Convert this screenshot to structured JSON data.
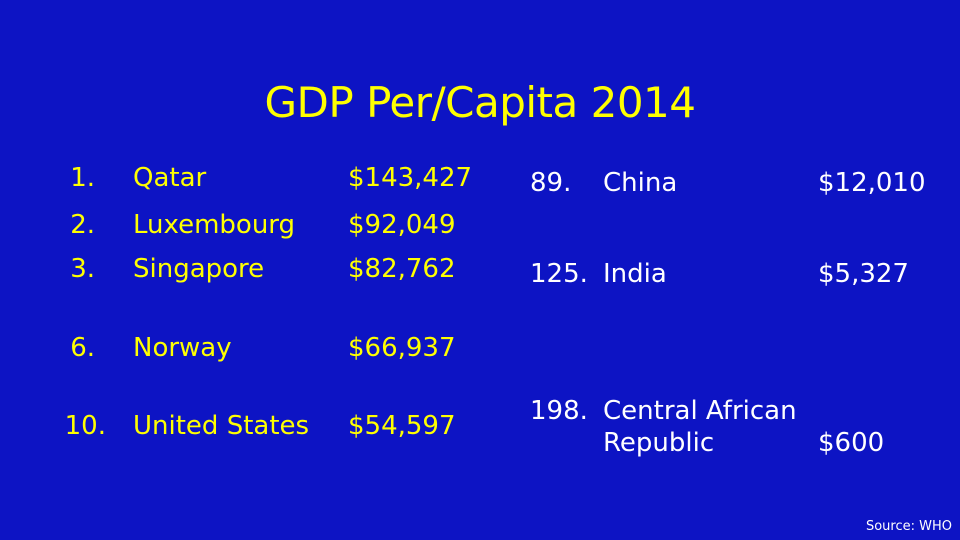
{
  "title": "GDP Per/Capita 2014",
  "colors": {
    "background": "#0d14c4",
    "title": "#ffff00",
    "left_table": "#ffff00",
    "right_table": "#ffffff"
  },
  "left_rows": [
    {
      "rank": "1.",
      "country": "Qatar",
      "gdp": "$143,427"
    },
    {
      "rank": "2.",
      "country": "Luxembourg",
      "gdp": "$92,049"
    },
    {
      "rank": "3.",
      "country": "Singapore",
      "gdp": "$82,762"
    },
    {
      "rank": "6.",
      "country": "Norway",
      "gdp": "$66,937"
    },
    {
      "rank": "10.",
      "country": "United States",
      "gdp": "$54,597"
    }
  ],
  "right_rows": [
    {
      "rank": "89.",
      "country": "China",
      "gdp": "$12,010"
    },
    {
      "rank": "125.",
      "country": "India",
      "gdp": "$5,327"
    },
    {
      "rank": "198.",
      "country_line1": "Central African",
      "country_line2": "Republic",
      "gdp": "$600"
    }
  ],
  "source": "Source: WHO"
}
